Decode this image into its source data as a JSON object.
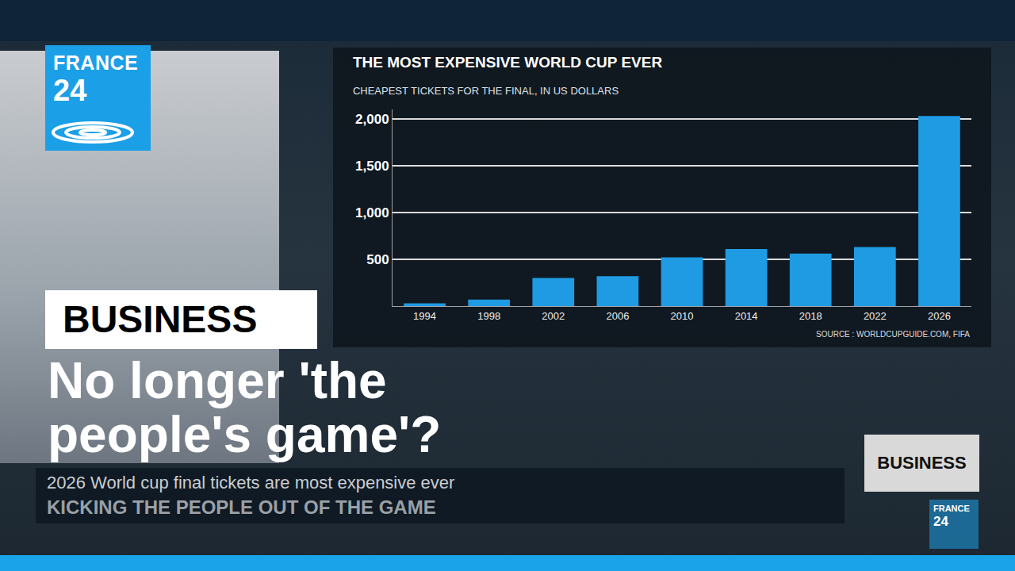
{
  "chart_data": {
    "type": "bar",
    "title": "THE MOST EXPENSIVE WORLD CUP EVER",
    "subtitle": "CHEAPEST TICKETS FOR THE FINAL, IN US DOLLARS",
    "source": "SOURCE : WORLDCUPGUIDE.COM, FIFA",
    "categories": [
      "1994",
      "1998",
      "2002",
      "2006",
      "2010",
      "2014",
      "2018",
      "2022",
      "2026"
    ],
    "values": [
      30,
      70,
      300,
      320,
      520,
      610,
      560,
      630,
      2030
    ],
    "color": "#1e9be3",
    "ylim": [
      0,
      2100
    ],
    "yticks": [
      500,
      {
        "value": 1000,
        "label": "1,000"
      },
      {
        "value": 1500,
        "label": "1,500"
      },
      {
        "value": 2000,
        "label": "2,000"
      }
    ],
    "grid": true
  },
  "logo": {
    "line1": "FRANCE",
    "line2": "24"
  },
  "section": "BUSINESS",
  "headline": "No longer 'the people's game'?",
  "ticker": [
    "2026 World cup final tickets are most expensive ever",
    "KICKING THE PEOPLE OUT OF THE GAME"
  ],
  "badge": "BUSINESS"
}
